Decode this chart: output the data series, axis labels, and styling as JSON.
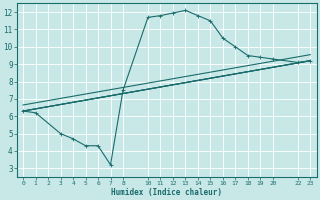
{
  "xlabel": "Humidex (Indice chaleur)",
  "bg_color": "#c8e8e8",
  "line_color": "#1a6b6b",
  "grid_color": "#ffffff",
  "xlim": [
    -0.5,
    23.5
  ],
  "ylim": [
    2.5,
    12.5
  ],
  "xticks": [
    0,
    1,
    2,
    3,
    4,
    5,
    6,
    7,
    8,
    10,
    11,
    12,
    13,
    14,
    15,
    16,
    17,
    18,
    19,
    20,
    22,
    23
  ],
  "yticks": [
    3,
    4,
    5,
    6,
    7,
    8,
    9,
    10,
    11,
    12
  ],
  "curve1_x": [
    0,
    1,
    3,
    4,
    5,
    6,
    7,
    8,
    10,
    11,
    12,
    13,
    14,
    15,
    16,
    17,
    18,
    19,
    20,
    22,
    23
  ],
  "curve1_y": [
    6.3,
    6.2,
    5.0,
    4.7,
    4.3,
    4.3,
    3.2,
    7.5,
    11.7,
    11.8,
    11.95,
    12.1,
    11.8,
    11.5,
    10.5,
    10.0,
    9.5,
    9.4,
    9.3,
    9.1,
    9.2
  ],
  "curve2_x": [
    0,
    23
  ],
  "curve2_y": [
    6.3,
    9.2
  ],
  "curve3_x": [
    0,
    23
  ],
  "curve3_y": [
    6.3,
    9.2
  ],
  "marker_size": 2.5,
  "line_width": 0.8
}
